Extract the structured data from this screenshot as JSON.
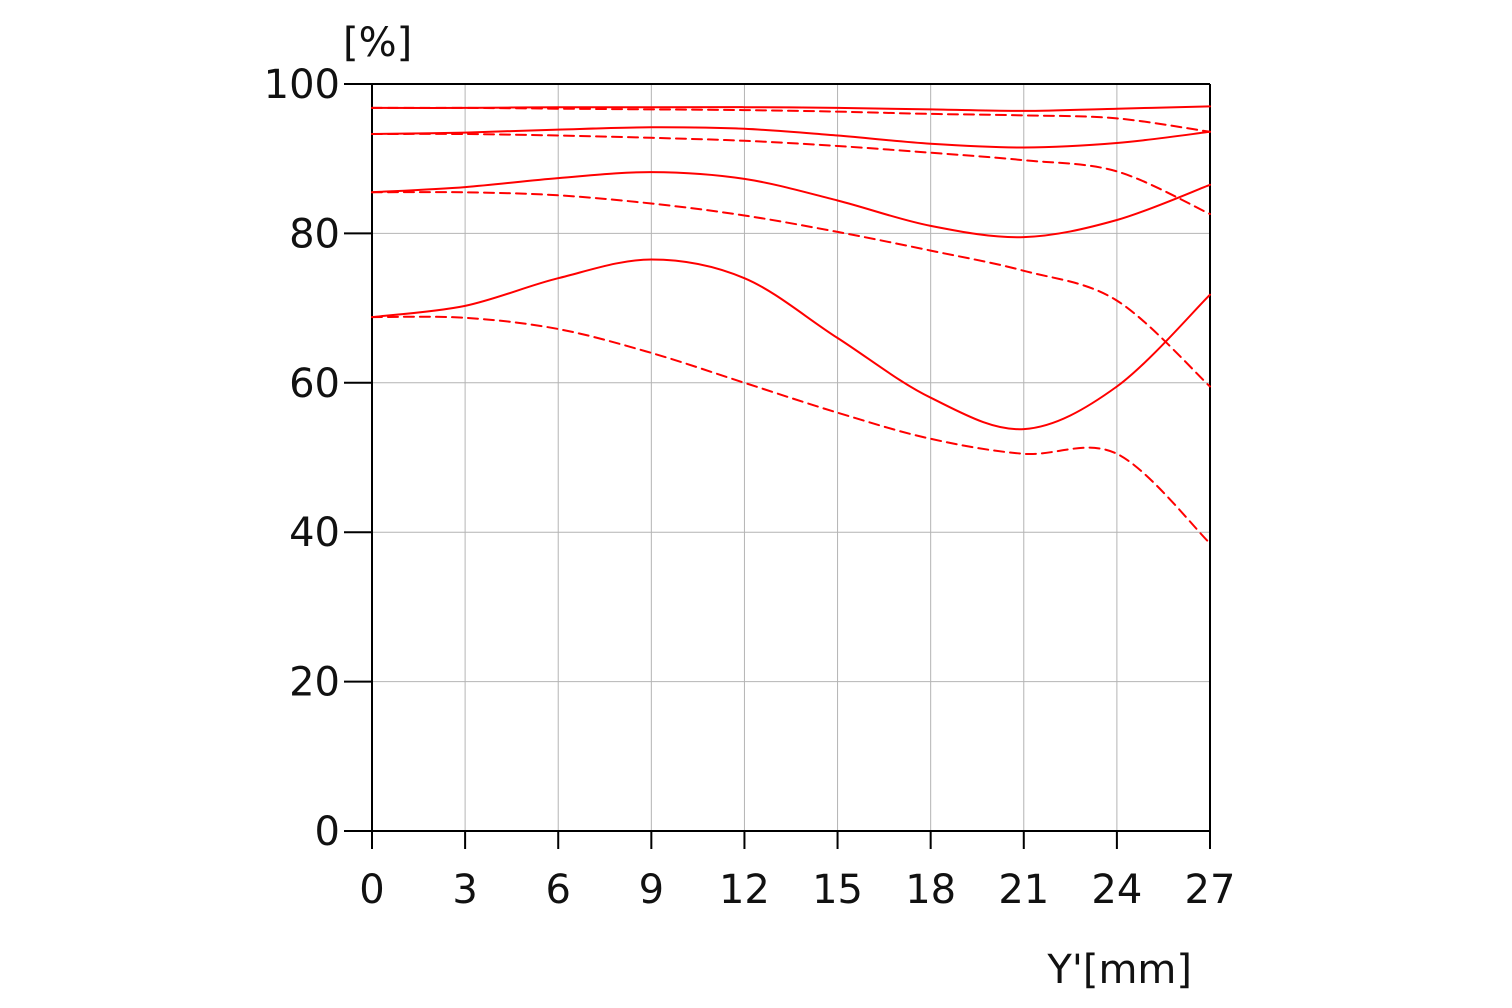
{
  "chart_data": {
    "type": "line",
    "title": "",
    "xlabel": "Y'[mm]",
    "ylabel": "[%]",
    "xlim": [
      0,
      27
    ],
    "ylim": [
      0,
      100
    ],
    "x_ticks": [
      "0",
      "3",
      "6",
      "9",
      "12",
      "15",
      "18",
      "21",
      "24",
      "27"
    ],
    "y_ticks": [
      "0",
      "20",
      "40",
      "60",
      "80",
      "100"
    ],
    "grid": true,
    "legend": "none",
    "line_color": "#ff0000",
    "series": [
      {
        "style": "solid",
        "points": [
          [
            0,
            96.8
          ],
          [
            3,
            96.8
          ],
          [
            6,
            96.9
          ],
          [
            9,
            96.9
          ],
          [
            12,
            96.9
          ],
          [
            15,
            96.8
          ],
          [
            18,
            96.6
          ],
          [
            21,
            96.4
          ],
          [
            24,
            96.7
          ],
          [
            27,
            97.0
          ]
        ]
      },
      {
        "style": "dashed",
        "points": [
          [
            0,
            96.8
          ],
          [
            3,
            96.8
          ],
          [
            6,
            96.7
          ],
          [
            9,
            96.6
          ],
          [
            12,
            96.5
          ],
          [
            15,
            96.3
          ],
          [
            18,
            96.0
          ],
          [
            21,
            95.8
          ],
          [
            24,
            95.4
          ],
          [
            27,
            93.6
          ]
        ]
      },
      {
        "style": "solid",
        "points": [
          [
            0,
            93.3
          ],
          [
            3,
            93.5
          ],
          [
            6,
            93.9
          ],
          [
            9,
            94.2
          ],
          [
            12,
            94.0
          ],
          [
            15,
            93.1
          ],
          [
            18,
            92.0
          ],
          [
            21,
            91.5
          ],
          [
            24,
            92.1
          ],
          [
            27,
            93.6
          ]
        ]
      },
      {
        "style": "dashed",
        "points": [
          [
            0,
            93.3
          ],
          [
            3,
            93.3
          ],
          [
            6,
            93.1
          ],
          [
            9,
            92.8
          ],
          [
            12,
            92.4
          ],
          [
            15,
            91.7
          ],
          [
            18,
            90.8
          ],
          [
            21,
            89.8
          ],
          [
            24,
            88.3
          ],
          [
            27,
            82.6
          ]
        ]
      },
      {
        "style": "solid",
        "points": [
          [
            0,
            85.5
          ],
          [
            3,
            86.2
          ],
          [
            6,
            87.4
          ],
          [
            9,
            88.2
          ],
          [
            12,
            87.3
          ],
          [
            15,
            84.4
          ],
          [
            18,
            81.0
          ],
          [
            21,
            79.5
          ],
          [
            24,
            81.8
          ],
          [
            27,
            86.5
          ]
        ]
      },
      {
        "style": "dashed",
        "points": [
          [
            0,
            85.5
          ],
          [
            3,
            85.5
          ],
          [
            6,
            85.1
          ],
          [
            9,
            84.0
          ],
          [
            12,
            82.4
          ],
          [
            15,
            80.2
          ],
          [
            18,
            77.7
          ],
          [
            21,
            75.0
          ],
          [
            24,
            71.0
          ],
          [
            27,
            59.5
          ]
        ]
      },
      {
        "style": "solid",
        "points": [
          [
            0,
            68.8
          ],
          [
            3,
            70.3
          ],
          [
            6,
            74.0
          ],
          [
            9,
            76.5
          ],
          [
            12,
            74.0
          ],
          [
            15,
            66.0
          ],
          [
            18,
            58.0
          ],
          [
            21,
            53.8
          ],
          [
            24,
            59.5
          ],
          [
            27,
            71.8
          ]
        ]
      },
      {
        "style": "dashed",
        "points": [
          [
            0,
            68.8
          ],
          [
            3,
            68.7
          ],
          [
            6,
            67.2
          ],
          [
            9,
            64.0
          ],
          [
            12,
            60.0
          ],
          [
            15,
            56.0
          ],
          [
            18,
            52.5
          ],
          [
            21,
            50.5
          ],
          [
            24,
            50.5
          ],
          [
            27,
            38.5
          ]
        ]
      }
    ]
  }
}
